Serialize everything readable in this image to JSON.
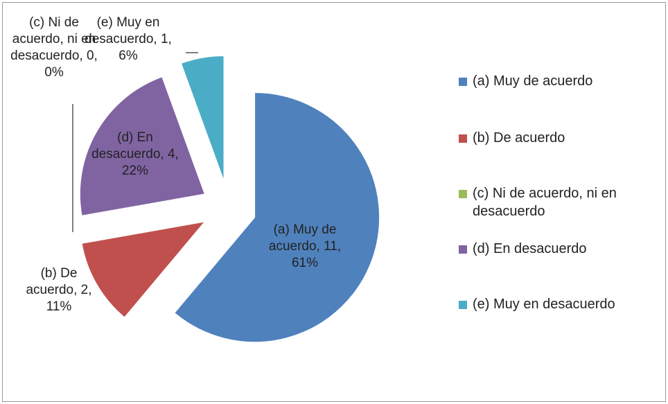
{
  "chart_data": {
    "type": "pie",
    "categories": [
      "(a)  Muy de acuerdo",
      "(b)  De acuerdo",
      "(c)  Ni de acuerdo, ni en desacuerdo",
      "(d)  En desacuerdo",
      "(e)  Muy en desacuerdo"
    ],
    "values": [
      11,
      2,
      0,
      4,
      1
    ],
    "value_labels": [
      "(a)  Muy de acuerdo, 11, 61%",
      "(b)  De acuerdo, 2, 11%",
      "(c)  Ni de acuerdo, ni en desacuerdo, 0, 0%",
      "(d)  En desacuerdo, 4, 22%",
      "(e)  Muy en desacuerdo, 1, 6%"
    ],
    "colors": [
      "#4f81bd",
      "#c0504d",
      "#9bbb59",
      "#8064a2",
      "#4bacc6"
    ],
    "legend": "right"
  }
}
